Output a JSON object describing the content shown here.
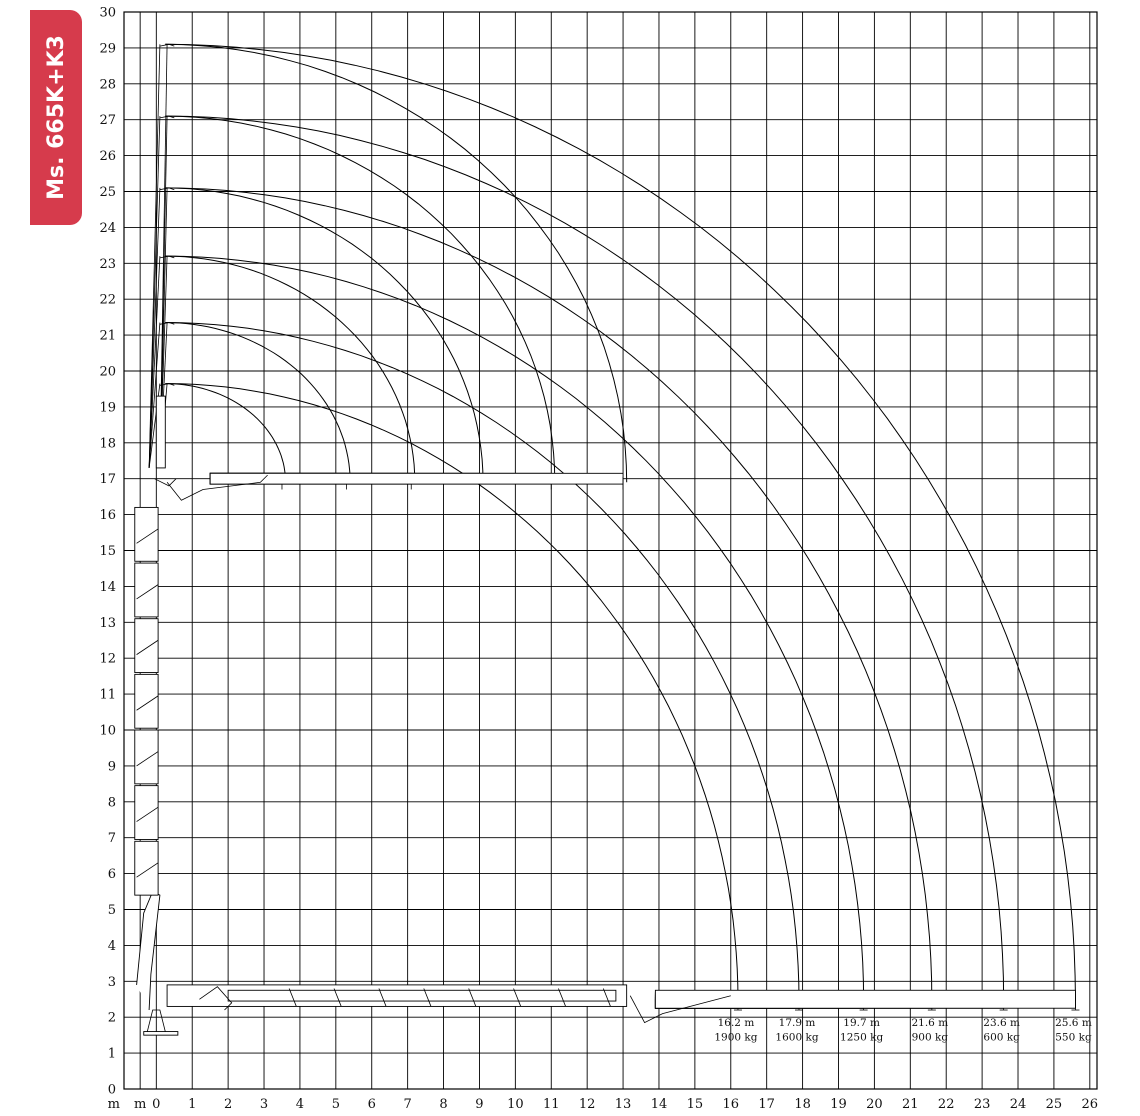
{
  "model_label": "Ms. 665K+K3",
  "chart_data": {
    "type": "line",
    "title": "",
    "xlabel": "m",
    "ylabel": "m",
    "x_ticks": [
      "m",
      "0",
      "1",
      "2",
      "3",
      "4",
      "5",
      "6",
      "7",
      "8",
      "9",
      "10",
      "11",
      "12",
      "13",
      "14",
      "15",
      "16",
      "17",
      "18",
      "19",
      "20",
      "21",
      "22",
      "23",
      "24",
      "25",
      "26"
    ],
    "y_ticks": [
      "0",
      "1",
      "2",
      "3",
      "4",
      "5",
      "6",
      "7",
      "8",
      "9",
      "10",
      "11",
      "12",
      "13",
      "14",
      "15",
      "16",
      "17",
      "18",
      "19",
      "20",
      "21",
      "22",
      "23",
      "24",
      "25",
      "26",
      "27",
      "28",
      "29",
      "30"
    ],
    "xlim": [
      -0.9,
      26.2
    ],
    "ylim": [
      0,
      30
    ],
    "grid": true,
    "outreach_configurations": [
      {
        "reach_label": "16.2 m",
        "load_label": "1900 kg",
        "reach": 16.2,
        "boom_tip_height": 19.65,
        "jib_tip": 3.5
      },
      {
        "reach_label": "17.9 m",
        "load_label": "1600 kg",
        "reach": 17.9,
        "boom_tip_height": 21.35,
        "jib_tip": 5.3
      },
      {
        "reach_label": "19.7 m",
        "load_label": "1250 kg",
        "reach": 19.7,
        "boom_tip_height": 23.2,
        "jib_tip": 7.1
      },
      {
        "reach_label": "21.6 m",
        "load_label": "900 kg",
        "reach": 21.6,
        "boom_tip_height": 25.1,
        "jib_tip": 9.0
      },
      {
        "reach_label": "23.6 m",
        "load_label": "600 kg",
        "reach": 23.6,
        "boom_tip_height": 27.1,
        "jib_tip": 11.0
      },
      {
        "reach_label": "25.6 m",
        "load_label": "550 kg",
        "reach": 25.6,
        "boom_tip_height": 29.1,
        "jib_tip": 13.0
      }
    ]
  }
}
